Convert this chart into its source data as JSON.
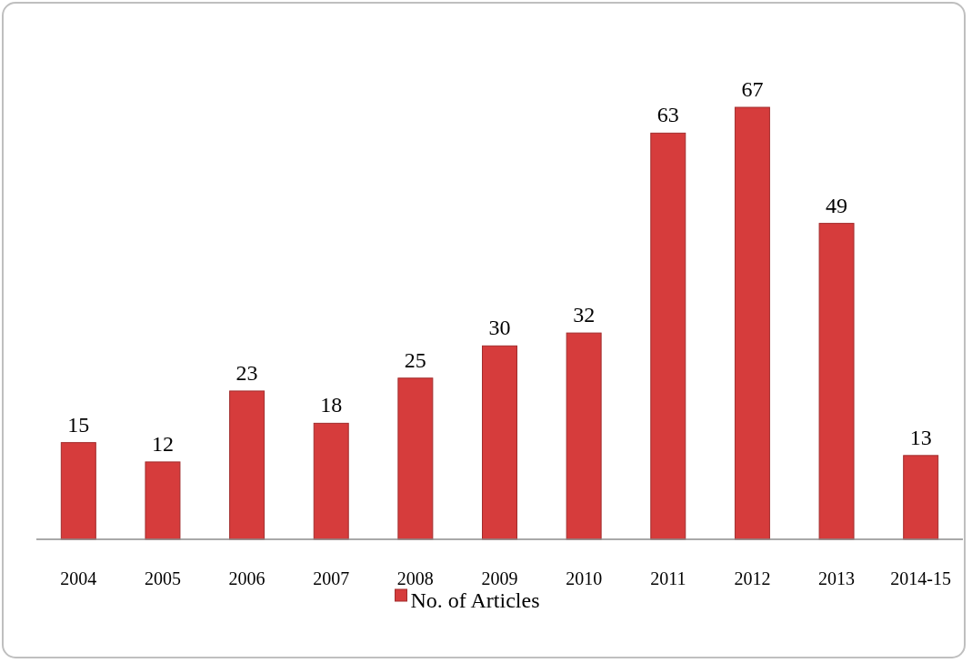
{
  "chart_data": {
    "type": "bar",
    "categories": [
      "2004",
      "2005",
      "2006",
      "2007",
      "2008",
      "2009",
      "2010",
      "2011",
      "2012",
      "2013",
      "2014-15"
    ],
    "series": [
      {
        "name": "No. of Articles",
        "color": "#d63c3c",
        "values": [
          15,
          12,
          23,
          18,
          25,
          30,
          32,
          63,
          67,
          49,
          13
        ]
      }
    ],
    "data_labels": true,
    "legend": "bottom",
    "grid": false
  }
}
